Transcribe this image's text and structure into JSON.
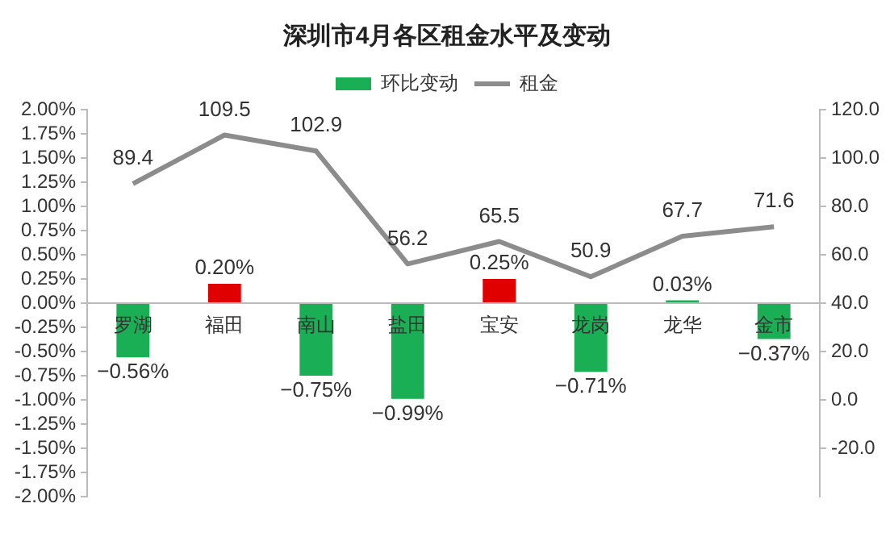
{
  "chart_data": {
    "type": "bar",
    "title": "深圳市4月各区租金水平及变动",
    "categories": [
      "罗湖",
      "福田",
      "南山",
      "盐田",
      "宝安",
      "龙岗",
      "龙华",
      "金市"
    ],
    "series": [
      {
        "name": "环比变动",
        "axis": "y",
        "colors": [
          "#1aaf54",
          "#e00000",
          "#1aaf54",
          "#1aaf54",
          "#e00000",
          "#1aaf54",
          "#1aaf54",
          "#1aaf54"
        ],
        "values": [
          -0.56,
          0.2,
          -0.75,
          -0.99,
          0.25,
          -0.71,
          0.03,
          -0.37
        ],
        "value_labels": [
          "−0.56%",
          "0.20%",
          "−0.75%",
          "−0.99%",
          "0.25%",
          "−0.71%",
          "0.03%",
          "−0.37%"
        ]
      },
      {
        "name": "租金",
        "type": "line",
        "axis": "y2",
        "color": "#8c8c8c",
        "values": [
          89.4,
          109.5,
          102.9,
          56.2,
          65.5,
          50.9,
          67.7,
          71.6
        ],
        "value_labels": [
          "89.4",
          "109.5",
          "102.9",
          "56.2",
          "65.5",
          "50.9",
          "67.7",
          "71.6"
        ]
      }
    ],
    "ylim": [
      -2,
      2
    ],
    "yticks": [
      {
        "value": -2,
        "label": "-2.00%"
      },
      {
        "value": -1.75,
        "label": "-1.75%"
      },
      {
        "value": -1.5,
        "label": "-1.50%"
      },
      {
        "value": -1.25,
        "label": "-1.25%"
      },
      {
        "value": -1,
        "label": "-1.00%"
      },
      {
        "value": -0.75,
        "label": "-0.75%"
      },
      {
        "value": -0.5,
        "label": "-0.50%"
      },
      {
        "value": -0.25,
        "label": "-0.25%"
      },
      {
        "value": 0,
        "label": "0.00%"
      },
      {
        "value": 0.25,
        "label": "0.25%"
      },
      {
        "value": 0.5,
        "label": "0.50%"
      },
      {
        "value": 0.75,
        "label": "0.75%"
      },
      {
        "value": 1,
        "label": "1.00%"
      },
      {
        "value": 1.25,
        "label": "1.25%"
      },
      {
        "value": 1.5,
        "label": "1.50%"
      },
      {
        "value": 1.75,
        "label": "1.75%"
      },
      {
        "value": 2,
        "label": "2.00%"
      }
    ],
    "y2lim": [
      -40,
      120
    ],
    "y2ticks": [
      {
        "value": -20,
        "label": "-20.0"
      },
      {
        "value": 0,
        "label": "0.0"
      },
      {
        "value": 20,
        "label": "20.0"
      },
      {
        "value": 40,
        "label": "40.0"
      },
      {
        "value": 60,
        "label": "60.0"
      },
      {
        "value": 80,
        "label": "80.0"
      },
      {
        "value": 100,
        "label": "100.0"
      },
      {
        "value": 120,
        "label": "120.0"
      }
    ],
    "legend": "top",
    "grid": false,
    "marker": "none",
    "line_style": "solid"
  }
}
